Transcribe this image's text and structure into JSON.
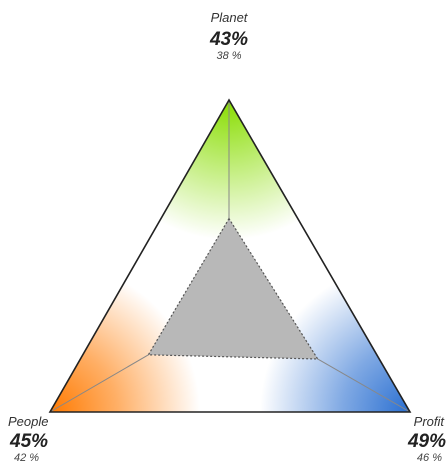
{
  "chart_data": {
    "type": "triangle-radar",
    "axes": [
      {
        "key": "planet",
        "label": "Planet",
        "value_text": "43%",
        "sub_text": "38 %",
        "value": 43,
        "sub_value": 38,
        "color": "#88dd00"
      },
      {
        "key": "people",
        "label": "People",
        "value_text": "45%",
        "sub_text": "42 %",
        "value": 45,
        "sub_value": 42,
        "color": "#ff7a00"
      },
      {
        "key": "profit",
        "label": "Profit",
        "value_text": "49%",
        "sub_text": "46 %",
        "value": 49,
        "sub_value": 46,
        "color": "#2a6fd1"
      }
    ],
    "inner_fill_color": "#b8b8b8",
    "grid": false,
    "legend": "none"
  }
}
